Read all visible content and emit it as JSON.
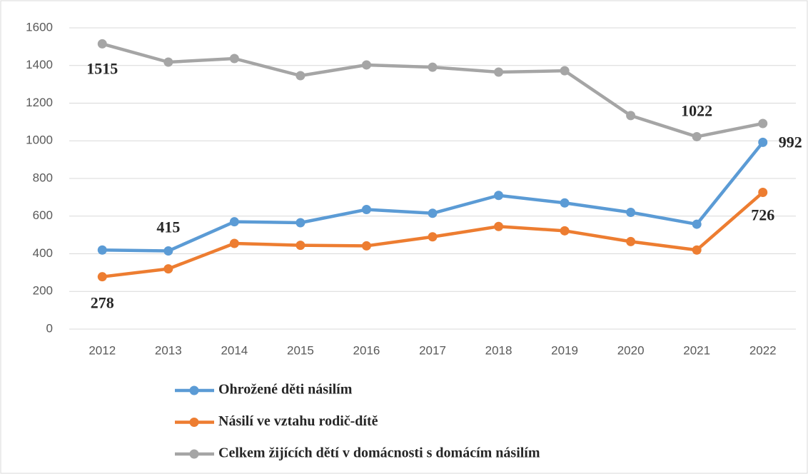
{
  "chart_data": {
    "type": "line",
    "categories": [
      "2012",
      "2013",
      "2014",
      "2015",
      "2016",
      "2017",
      "2018",
      "2019",
      "2020",
      "2021",
      "2022"
    ],
    "series": [
      {
        "name": "Ohrožené děti násilím",
        "color": "#5b9bd5",
        "values": [
          420,
          415,
          570,
          565,
          635,
          615,
          710,
          670,
          620,
          557,
          992
        ],
        "value_labels": [
          null,
          "415",
          null,
          null,
          null,
          null,
          null,
          null,
          null,
          null,
          "992"
        ]
      },
      {
        "name": "Násilí ve vztahu rodič-dítě",
        "color": "#ed7d31",
        "values": [
          278,
          320,
          455,
          445,
          442,
          490,
          545,
          522,
          465,
          420,
          726
        ],
        "value_labels": [
          "278",
          null,
          null,
          null,
          null,
          null,
          null,
          null,
          null,
          null,
          "726"
        ]
      },
      {
        "name": "Celkem žijících dětí v domácnosti s domácím násilím",
        "color": "#a5a5a5",
        "values": [
          1515,
          1418,
          1437,
          1346,
          1403,
          1391,
          1365,
          1372,
          1134,
          1022,
          1092
        ],
        "value_labels": [
          "1515",
          null,
          null,
          null,
          null,
          null,
          null,
          null,
          null,
          "1022",
          null
        ]
      }
    ],
    "ylim": [
      0,
      1600
    ],
    "yticks": [
      0,
      200,
      400,
      600,
      800,
      1000,
      1200,
      1400,
      1600
    ],
    "grid": true
  }
}
